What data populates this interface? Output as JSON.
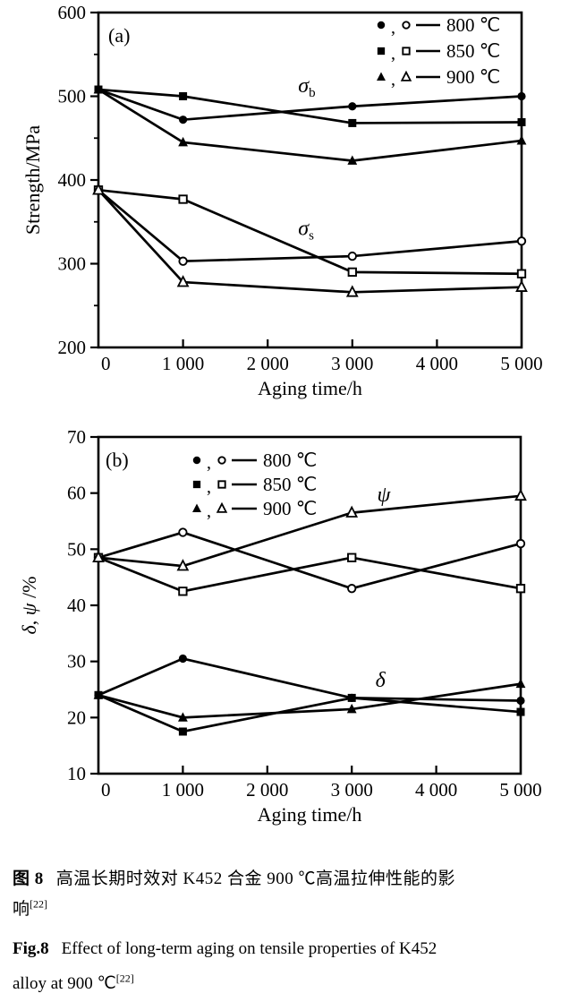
{
  "colors": {
    "ink": "#000000",
    "background": "#ffffff"
  },
  "caption": {
    "zh_label": "图 8",
    "zh_line1": "高温长期时效对 K452 合金 900 ℃高温拉伸性能的影",
    "zh_line2": "响",
    "zh_sup": "[22]",
    "en_label": "Fig.8",
    "en_line1": "Effect of long-term aging on tensile properties of K452",
    "en_line2": "alloy at 900 ℃",
    "en_sup": "[22]"
  },
  "chart_data": [
    {
      "type": "line",
      "panel_label": "(a)",
      "xlabel": "Aging time/h",
      "ylabel": "Strength/MPa",
      "ylabel_parts": [
        {
          "t": "Strength/MPa",
          "i": false
        }
      ],
      "xlim": [
        0,
        5000
      ],
      "ylim": [
        200,
        600
      ],
      "x": [
        0,
        1000,
        3000,
        5000
      ],
      "xticks": {
        "values": [
          0,
          1000,
          2000,
          3000,
          4000,
          5000
        ],
        "labels": [
          "0",
          "1 000",
          "2 000",
          "3 000",
          "4 000",
          "5 000"
        ]
      },
      "yticks": {
        "values": [
          200,
          300,
          400,
          500,
          600
        ],
        "labels": [
          "200",
          "300",
          "400",
          "500",
          "600"
        ]
      },
      "yticks_minor": [
        250,
        350,
        450,
        550
      ],
      "grid": false,
      "legend_position": "top-right-inside",
      "legend": [
        {
          "label": "800 ℃",
          "markers": [
            "filled-circle",
            "open-circle"
          ]
        },
        {
          "label": "850 ℃",
          "markers": [
            "filled-square",
            "open-square"
          ]
        },
        {
          "label": "900 ℃",
          "markers": [
            "filled-triangle",
            "open-triangle"
          ]
        }
      ],
      "series": [
        {
          "name": "sigma-b 800C",
          "marker": "filled-circle",
          "values": [
            508,
            472,
            488,
            500
          ]
        },
        {
          "name": "sigma-b 850C",
          "marker": "filled-square",
          "values": [
            508,
            500,
            468,
            469
          ]
        },
        {
          "name": "sigma-b 900C",
          "marker": "filled-triangle",
          "values": [
            508,
            445,
            423,
            447
          ]
        },
        {
          "name": "sigma-s 800C",
          "marker": "open-circle",
          "values": [
            388,
            303,
            309,
            327
          ]
        },
        {
          "name": "sigma-s 850C",
          "marker": "open-square",
          "values": [
            388,
            377,
            290,
            288
          ]
        },
        {
          "name": "sigma-s 900C",
          "marker": "open-triangle",
          "values": [
            388,
            278,
            266,
            272
          ]
        }
      ],
      "annotations": [
        {
          "text": "σ",
          "sub": "b",
          "x": 2360,
          "y": 505
        },
        {
          "text": "σ",
          "sub": "s",
          "x": 2360,
          "y": 334
        }
      ]
    },
    {
      "type": "line",
      "panel_label": "(b)",
      "xlabel": "Aging time/h",
      "ylabel": "δ, ψ/%",
      "ylabel_parts": [
        {
          "t": "δ",
          "i": true
        },
        {
          "t": ", ",
          "i": false
        },
        {
          "t": "ψ",
          "i": true
        },
        {
          "t": " /%",
          "i": false
        }
      ],
      "xlim": [
        0,
        5000
      ],
      "ylim": [
        10,
        70
      ],
      "x": [
        0,
        1000,
        3000,
        5000
      ],
      "xticks": {
        "values": [
          0,
          1000,
          2000,
          3000,
          4000,
          5000
        ],
        "labels": [
          "0",
          "1 000",
          "2 000",
          "3 000",
          "4 000",
          "5 000"
        ]
      },
      "yticks": {
        "values": [
          10,
          20,
          30,
          40,
          50,
          60,
          70
        ],
        "labels": [
          "10",
          "20",
          "30",
          "40",
          "50",
          "60",
          "70"
        ]
      },
      "yticks_minor": [],
      "grid": false,
      "legend_position": "top-left-inside",
      "legend": [
        {
          "label": "800 ℃",
          "markers": [
            "filled-circle",
            "open-circle"
          ]
        },
        {
          "label": "850 ℃",
          "markers": [
            "filled-square",
            "open-square"
          ]
        },
        {
          "label": "900 ℃",
          "markers": [
            "filled-triangle",
            "open-triangle"
          ]
        }
      ],
      "series": [
        {
          "name": "psi 800C",
          "marker": "open-circle",
          "values": [
            48.5,
            53,
            43,
            51
          ]
        },
        {
          "name": "psi 850C",
          "marker": "open-square",
          "values": [
            48.5,
            42.5,
            48.5,
            43
          ]
        },
        {
          "name": "psi 900C",
          "marker": "open-triangle",
          "values": [
            48.5,
            47,
            56.5,
            59.5
          ]
        },
        {
          "name": "delta 800C",
          "marker": "filled-circle",
          "values": [
            24,
            30.5,
            23.5,
            23
          ]
        },
        {
          "name": "delta 850C",
          "marker": "filled-square",
          "values": [
            24,
            17.5,
            23.5,
            21
          ]
        },
        {
          "name": "delta 900C",
          "marker": "filled-triangle",
          "values": [
            24,
            20,
            21.5,
            26
          ]
        }
      ],
      "annotations": [
        {
          "text": "ψ",
          "sub": "",
          "x": 3300,
          "y": 58.5
        },
        {
          "text": "δ",
          "sub": "",
          "x": 3280,
          "y": 25.5
        }
      ]
    }
  ]
}
